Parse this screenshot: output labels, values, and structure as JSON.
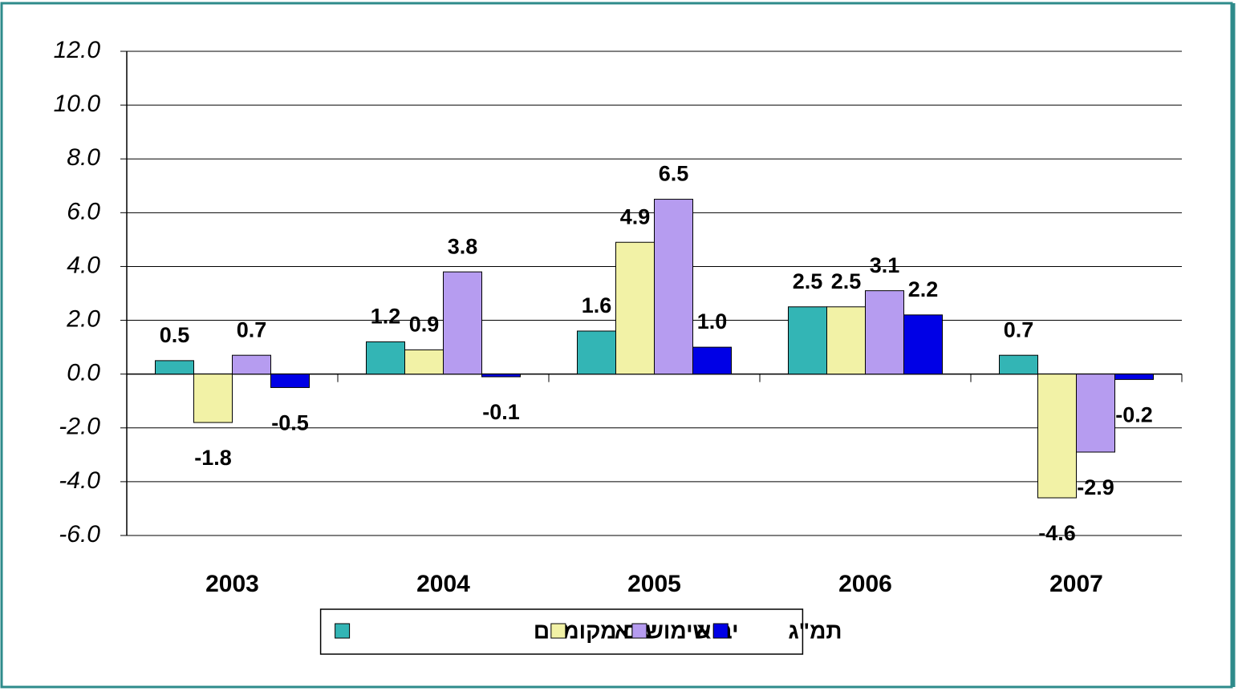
{
  "chart_data": {
    "type": "bar",
    "categories": [
      "2003",
      "2004",
      "2005",
      "2006",
      "2007"
    ],
    "series": [
      {
        "name": "שימושים מקומיים",
        "color": "#33b5b5",
        "values": [
          0.5,
          1.2,
          1.6,
          2.5,
          0.7
        ],
        "value_labels": [
          "0.5",
          "1.2",
          "1.6",
          "2.5",
          "0.7"
        ]
      },
      {
        "name": "יצוא",
        "color": "#f2f2a6",
        "values": [
          -1.8,
          0.9,
          4.9,
          2.5,
          -4.6
        ],
        "value_labels": [
          "-1.8",
          "0.9",
          "4.9",
          "2.5",
          "-4.6"
        ]
      },
      {
        "name": "יבוא",
        "color": "#b69cf0",
        "values": [
          0.7,
          3.8,
          6.5,
          3.1,
          -2.9
        ],
        "value_labels": [
          "0.7",
          "3.8",
          "6.5",
          "3.1",
          "-2.9"
        ]
      },
      {
        "name": "תמ\"ג",
        "color": "#0000e6",
        "values": [
          -0.5,
          -0.1,
          1.0,
          2.2,
          -0.2
        ],
        "value_labels": [
          "-0.5",
          "-0.1",
          "1.0",
          "2.2",
          "-0.2"
        ]
      }
    ],
    "ylim": [
      -6,
      12
    ],
    "yticks": [
      {
        "value": -6,
        "label": "-6.0"
      },
      {
        "value": -4,
        "label": "-4.0"
      },
      {
        "value": -2,
        "label": "-2.0"
      },
      {
        "value": 0,
        "label": "0.0"
      },
      {
        "value": 2,
        "label": "2.0"
      },
      {
        "value": 4,
        "label": "4.0"
      },
      {
        "value": 6,
        "label": "6.0"
      },
      {
        "value": 8,
        "label": "8.0"
      },
      {
        "value": 10,
        "label": "10.0"
      },
      {
        "value": 12,
        "label": "12.0"
      }
    ],
    "grid": true
  }
}
